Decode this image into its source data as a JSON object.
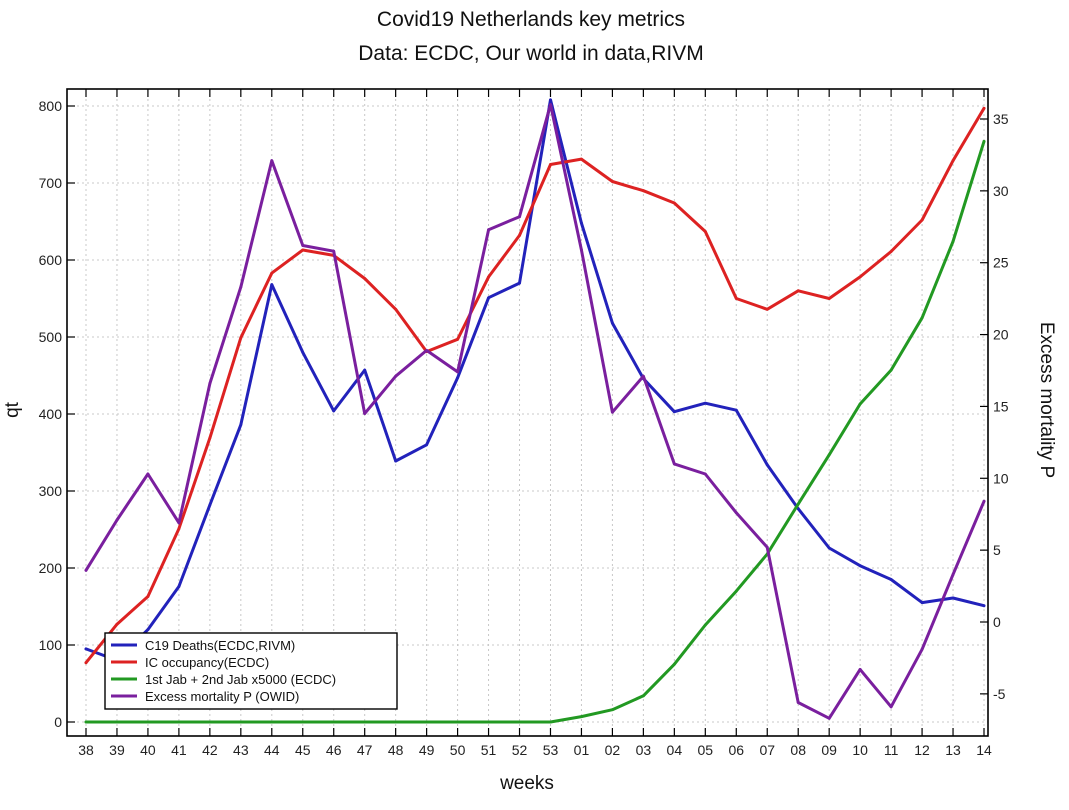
{
  "chart_data": {
    "type": "line",
    "title": "Covid19 Netherlands key metrics",
    "subtitle": "Data: ECDC, Our world in data,RIVM",
    "xlabel": "weeks",
    "ylabel": "qt",
    "y2label": "Excess mortality P",
    "categories": [
      "38",
      "39",
      "40",
      "41",
      "42",
      "43",
      "44",
      "45",
      "46",
      "47",
      "48",
      "49",
      "50",
      "51",
      "52",
      "53",
      "01",
      "02",
      "03",
      "04",
      "05",
      "06",
      "07",
      "08",
      "09",
      "10",
      "11",
      "12",
      "13",
      "14"
    ],
    "ylim": [
      0,
      800
    ],
    "yticks": [
      0,
      100,
      200,
      300,
      400,
      500,
      600,
      700,
      800
    ],
    "y2lim": [
      -7,
      36
    ],
    "y2ticks": [
      -5,
      0,
      5,
      10,
      15,
      20,
      25,
      30,
      35
    ],
    "grid": true,
    "legend_position": "bottom-left",
    "series": [
      {
        "name": "C19 Deaths(ECDC,RIVM)",
        "color": "#2222bb",
        "axis": "left",
        "values": [
          95,
          80,
          120,
          176,
          282,
          386,
          568,
          480,
          404,
          457,
          339,
          360,
          447,
          551,
          570,
          808,
          648,
          518,
          446,
          403,
          414,
          405,
          334,
          277,
          226,
          203,
          185,
          155,
          161,
          151
        ]
      },
      {
        "name": "IC occupancy(ECDC)",
        "color": "#dd2222",
        "axis": "left",
        "values": [
          77,
          127,
          163,
          251,
          369,
          499,
          583,
          613,
          606,
          576,
          536,
          481,
          497,
          578,
          632,
          724,
          731,
          702,
          690,
          674,
          637,
          550,
          536,
          560,
          550,
          578,
          611,
          652,
          729,
          797
        ]
      },
      {
        "name": "1st Jab + 2nd Jab x5000 (ECDC)",
        "color": "#229922",
        "axis": "left",
        "values": [
          0,
          0,
          0,
          0,
          0,
          0,
          0,
          0,
          0,
          0,
          0,
          0,
          0,
          0,
          0,
          0,
          7,
          16,
          34,
          75,
          126,
          170,
          218,
          283,
          347,
          413,
          457,
          525,
          624,
          754
        ]
      },
      {
        "name": "Excess mortality P (OWID)",
        "color": "#7a1f9e",
        "axis": "right",
        "values": [
          3.6,
          7.1,
          10.3,
          6.9,
          16.6,
          23.3,
          32.1,
          26.2,
          25.8,
          14.5,
          17.1,
          18.9,
          17.4,
          27.3,
          28.2,
          36.0,
          25.9,
          14.6,
          17.1,
          11.0,
          10.3,
          7.6,
          5.2,
          -5.6,
          -6.7,
          -3.3,
          -5.9,
          -1.9,
          3.3,
          8.4
        ]
      }
    ]
  }
}
